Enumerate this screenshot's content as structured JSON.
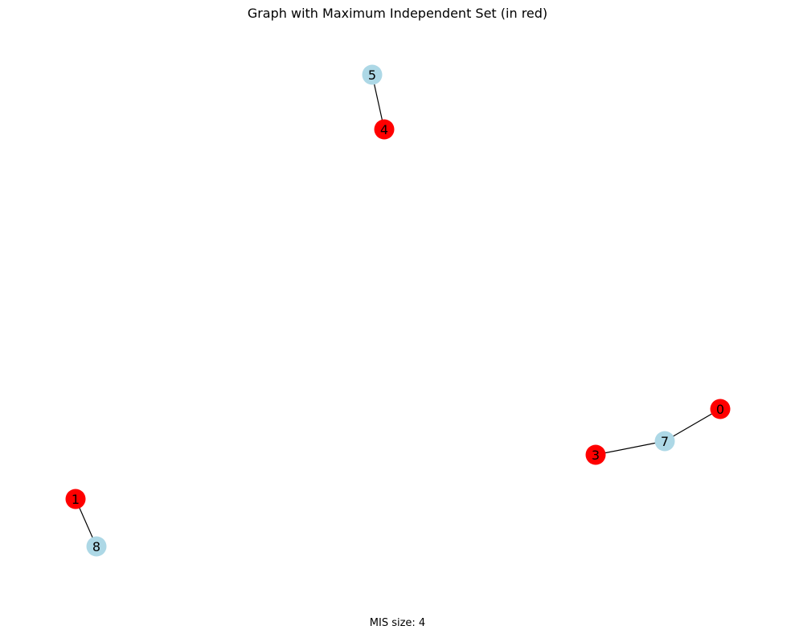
{
  "figure": {
    "title": "Graph with Maximum Independent Set (in red)",
    "caption": "MIS size: 4"
  },
  "graph": {
    "colors": {
      "in_set": "#ff0000",
      "not_in_set": "#add8e6",
      "edge": "#000000",
      "label": "#000000"
    },
    "nodes": [
      {
        "id": "0",
        "in_set": true
      },
      {
        "id": "1",
        "in_set": true
      },
      {
        "id": "3",
        "in_set": true
      },
      {
        "id": "4",
        "in_set": true
      },
      {
        "id": "5",
        "in_set": false
      },
      {
        "id": "7",
        "in_set": false
      },
      {
        "id": "8",
        "in_set": false
      }
    ],
    "edges": [
      {
        "source": "5",
        "target": "4"
      },
      {
        "source": "0",
        "target": "7"
      },
      {
        "source": "3",
        "target": "7"
      },
      {
        "source": "1",
        "target": "8"
      }
    ]
  }
}
